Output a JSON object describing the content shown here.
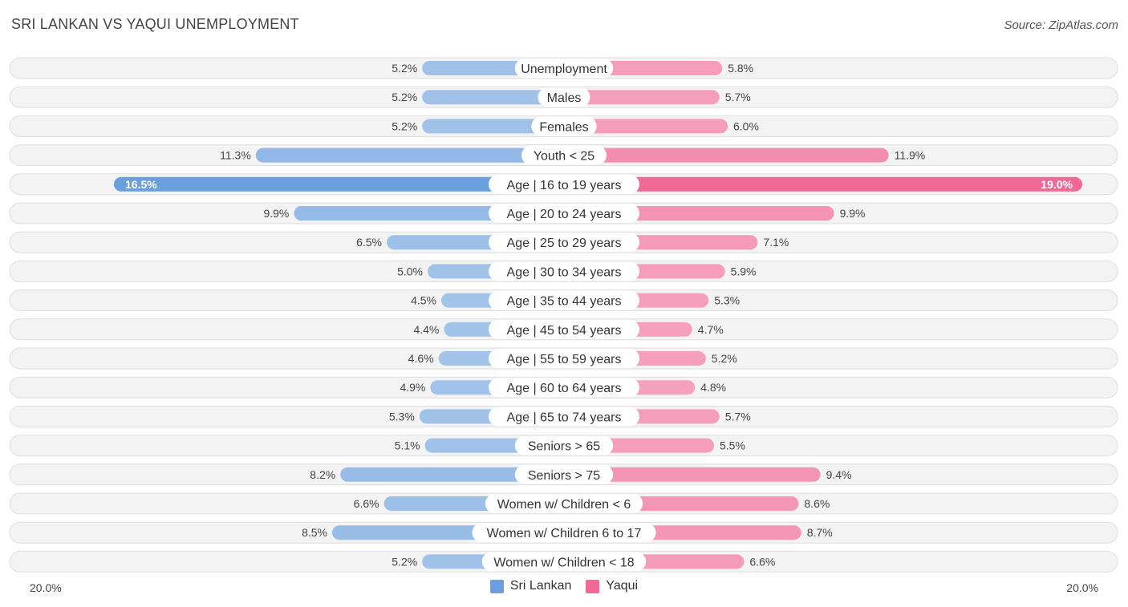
{
  "title": "SRI LANKAN VS YAQUI UNEMPLOYMENT",
  "source": "Source: ZipAtlas.com",
  "axis": {
    "left_label": "20.0%",
    "right_label": "20.0%"
  },
  "legend": [
    {
      "label": "Sri Lankan",
      "color": "#6a9fdd"
    },
    {
      "label": "Yaqui",
      "color": "#f06896"
    }
  ],
  "chart_data": {
    "type": "bar",
    "orientation": "horizontal-diverging",
    "title": "SRI LANKAN VS YAQUI UNEMPLOYMENT",
    "xlim": [
      0,
      20
    ],
    "categories": [
      "Unemployment",
      "Males",
      "Females",
      "Youth < 25",
      "Age | 16 to 19 years",
      "Age | 20 to 24 years",
      "Age | 25 to 29 years",
      "Age | 30 to 34 years",
      "Age | 35 to 44 years",
      "Age | 45 to 54 years",
      "Age | 55 to 59 years",
      "Age | 60 to 64 years",
      "Age | 65 to 74 years",
      "Seniors > 65",
      "Seniors > 75",
      "Women w/ Children < 6",
      "Women w/ Children 6 to 17",
      "Women w/ Children < 18"
    ],
    "series": [
      {
        "name": "Sri Lankan",
        "values": [
          5.2,
          5.2,
          5.2,
          11.3,
          16.5,
          9.9,
          6.5,
          5.0,
          4.5,
          4.4,
          4.6,
          4.9,
          5.3,
          5.1,
          8.2,
          6.6,
          8.5,
          5.2
        ],
        "labels": [
          "5.2%",
          "5.2%",
          "5.2%",
          "11.3%",
          "16.5%",
          "9.9%",
          "6.5%",
          "5.0%",
          "4.5%",
          "4.4%",
          "4.6%",
          "4.9%",
          "5.3%",
          "5.1%",
          "8.2%",
          "6.6%",
          "8.5%",
          "5.2%"
        ]
      },
      {
        "name": "Yaqui",
        "values": [
          5.8,
          5.7,
          6.0,
          11.9,
          19.0,
          9.9,
          7.1,
          5.9,
          5.3,
          4.7,
          5.2,
          4.8,
          5.7,
          5.5,
          9.4,
          8.6,
          8.7,
          6.6
        ],
        "labels": [
          "5.8%",
          "5.7%",
          "6.0%",
          "11.9%",
          "19.0%",
          "9.9%",
          "7.1%",
          "5.9%",
          "5.3%",
          "4.7%",
          "5.2%",
          "4.8%",
          "5.7%",
          "5.5%",
          "9.4%",
          "8.6%",
          "8.7%",
          "6.6%"
        ]
      }
    ],
    "legend_position": "bottom-center",
    "grid": false
  }
}
